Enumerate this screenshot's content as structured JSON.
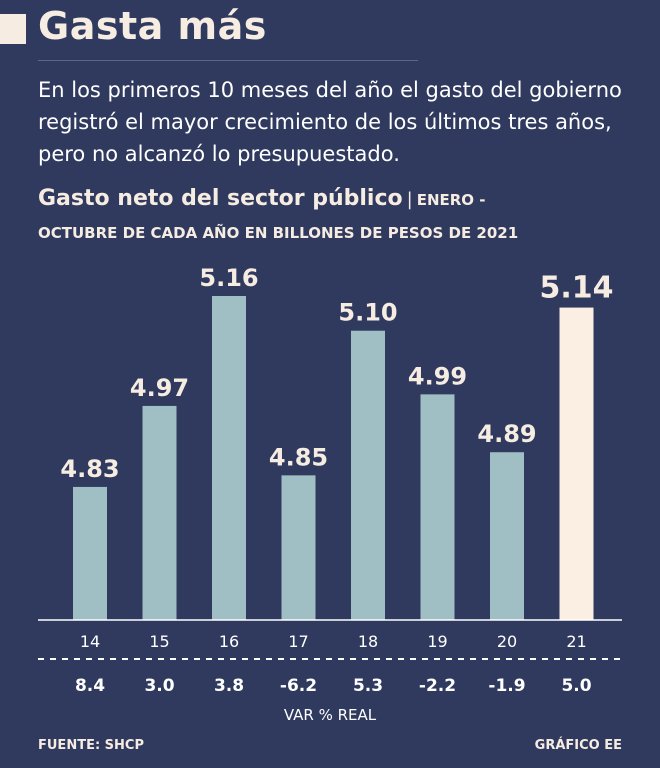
{
  "header": {
    "title": "Gasta más",
    "subtitle": "En los primeros 10 meses del año el gasto del gobierno registró el mayor crecimiento de los últimos tres años, pero no alcanzó lo presupuestado."
  },
  "chart_title": {
    "main": "Gasto neto del sector público",
    "separator": "|",
    "detail_1": "ENERO -",
    "detail_2": "OCTUBRE DE CADA AÑO EN BILLONES DE PESOS DE 2021"
  },
  "chart_data": {
    "type": "bar",
    "title": "Gasto neto del sector público",
    "ylabel": "Billones de pesos de 2021",
    "categories": [
      "14",
      "15",
      "16",
      "17",
      "18",
      "19",
      "20",
      "21"
    ],
    "values": [
      4.83,
      4.97,
      5.16,
      4.85,
      5.1,
      4.99,
      4.89,
      5.14
    ],
    "value_labels": [
      "4.83",
      "4.97",
      "5.16",
      "4.85",
      "5.10",
      "4.99",
      "4.89",
      "5.14"
    ],
    "var_real": [
      "8.4",
      "3.0",
      "3.8",
      "-6.2",
      "5.3",
      "-2.2",
      "-1.9",
      "5.0"
    ],
    "var_label": "VAR % REAL",
    "highlight_index": 7,
    "ylim": [
      4.6,
      5.16
    ]
  },
  "colors": {
    "background": "#2f3a5e",
    "bar": "#9fbfc4",
    "bar_highlight": "#fbeee2",
    "text_light": "#f6ece2"
  },
  "footer": {
    "source": "FUENTE: SHCP",
    "credit": "GRÁFICO EE"
  }
}
